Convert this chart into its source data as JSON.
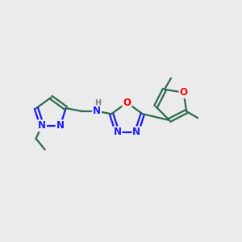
{
  "bg_color": "#ebebeb",
  "bond_color": "#2d6b4f",
  "N_color": "#1a1aff",
  "O_color": "#ff0000",
  "H_color": "#808080",
  "line_width": 1.6,
  "font_size": 8.5,
  "fig_size": [
    3.0,
    3.0
  ],
  "dpi": 100,
  "xlim": [
    0,
    12
  ],
  "ylim": [
    0,
    12
  ]
}
